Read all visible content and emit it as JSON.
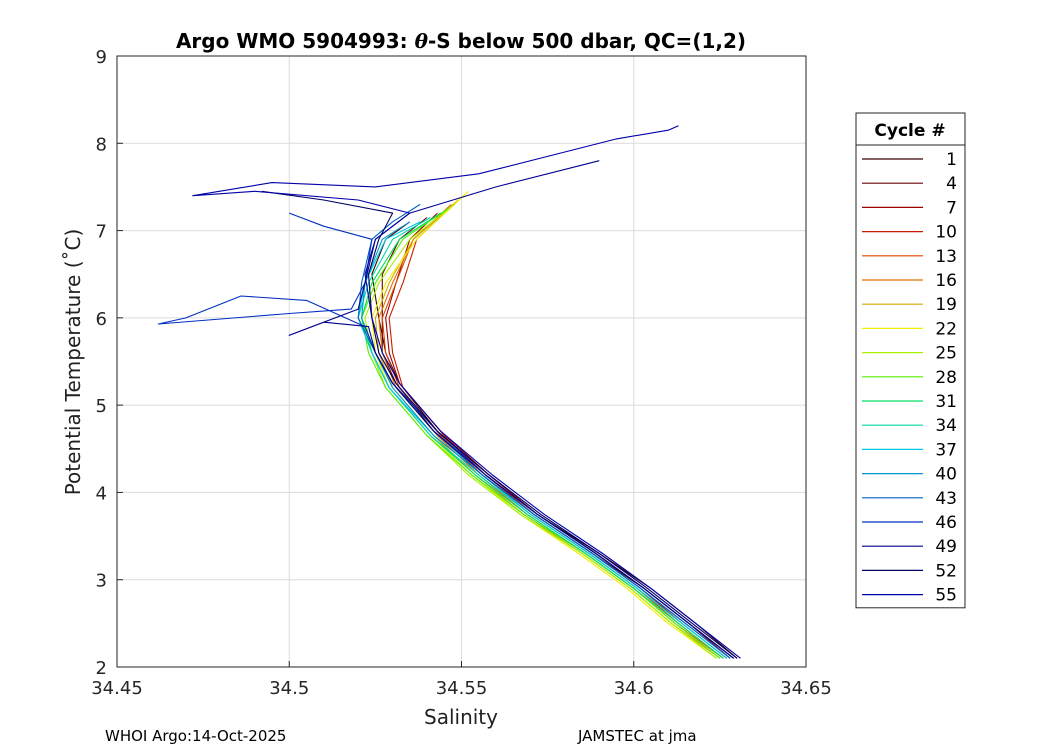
{
  "chart_data": {
    "type": "line",
    "title": "Argo WMO 5904993: θ-S below 500 dbar,  QC=(1,2)",
    "title_parts": {
      "prefix": "Argo WMO 5904993: ",
      "theta": "θ",
      "suffix": "-S below 500 dbar,  QC=(1,2)"
    },
    "xlabel": "Salinity",
    "ylabel": "Potential Temperature (˚C)",
    "xlim": [
      34.45,
      34.65
    ],
    "ylim": [
      2,
      9
    ],
    "x_ticks": [
      "34.45",
      "34.5",
      "34.55",
      "34.6",
      "34.65"
    ],
    "y_ticks": [
      "2",
      "3",
      "4",
      "5",
      "6",
      "7",
      "8",
      "9"
    ],
    "grid": true,
    "legend": {
      "title": "Cycle #",
      "placement": "outside-right"
    },
    "series": [
      {
        "name": "1",
        "color": "#3a0000",
        "points": [
          [
            34.63,
            2.1
          ],
          [
            34.618,
            2.5
          ],
          [
            34.605,
            2.9
          ],
          [
            34.59,
            3.3
          ],
          [
            34.572,
            3.75
          ],
          [
            34.558,
            4.2
          ],
          [
            34.543,
            4.7
          ],
          [
            34.532,
            5.25
          ],
          [
            34.528,
            5.6
          ],
          [
            34.526,
            6.0
          ],
          [
            34.524,
            6.5
          ],
          [
            34.528,
            6.9
          ],
          [
            34.535,
            7.1
          ]
        ]
      },
      {
        "name": "4",
        "color": "#6a0000",
        "points": [
          [
            34.629,
            2.1
          ],
          [
            34.616,
            2.5
          ],
          [
            34.603,
            2.9
          ],
          [
            34.588,
            3.3
          ],
          [
            34.571,
            3.75
          ],
          [
            34.557,
            4.2
          ],
          [
            34.542,
            4.7
          ],
          [
            34.531,
            5.25
          ],
          [
            34.527,
            5.6
          ],
          [
            34.527,
            6.0
          ],
          [
            34.527,
            6.5
          ],
          [
            34.532,
            6.9
          ],
          [
            34.54,
            7.15
          ]
        ]
      },
      {
        "name": "7",
        "color": "#9a0000",
        "points": [
          [
            34.628,
            2.1
          ],
          [
            34.616,
            2.5
          ],
          [
            34.603,
            2.9
          ],
          [
            34.589,
            3.3
          ],
          [
            34.572,
            3.75
          ],
          [
            34.558,
            4.2
          ],
          [
            34.544,
            4.7
          ],
          [
            34.532,
            5.25
          ],
          [
            34.529,
            5.6
          ],
          [
            34.528,
            6.0
          ],
          [
            34.531,
            6.4
          ],
          [
            34.535,
            6.9
          ],
          [
            34.543,
            7.2
          ]
        ]
      },
      {
        "name": "10",
        "color": "#cc1a00",
        "points": [
          [
            34.627,
            2.1
          ],
          [
            34.614,
            2.5
          ],
          [
            34.602,
            2.9
          ],
          [
            34.588,
            3.3
          ],
          [
            34.571,
            3.75
          ],
          [
            34.557,
            4.2
          ],
          [
            34.545,
            4.65
          ],
          [
            34.533,
            5.2
          ],
          [
            34.53,
            5.6
          ],
          [
            34.529,
            6.0
          ],
          [
            34.533,
            6.4
          ],
          [
            34.537,
            6.9
          ],
          [
            34.545,
            7.2
          ]
        ]
      },
      {
        "name": "13",
        "color": "#e04400",
        "points": [
          [
            34.626,
            2.1
          ],
          [
            34.613,
            2.5
          ],
          [
            34.601,
            2.9
          ],
          [
            34.587,
            3.3
          ],
          [
            34.57,
            3.75
          ],
          [
            34.556,
            4.2
          ],
          [
            34.544,
            4.65
          ],
          [
            34.532,
            5.2
          ],
          [
            34.528,
            5.6
          ],
          [
            34.527,
            6.0
          ],
          [
            34.531,
            6.4
          ],
          [
            34.536,
            6.9
          ],
          [
            34.546,
            7.25
          ]
        ]
      },
      {
        "name": "16",
        "color": "#e07000",
        "points": [
          [
            34.626,
            2.1
          ],
          [
            34.612,
            2.5
          ],
          [
            34.6,
            2.9
          ],
          [
            34.586,
            3.3
          ],
          [
            34.569,
            3.75
          ],
          [
            34.555,
            4.2
          ],
          [
            34.543,
            4.65
          ],
          [
            34.531,
            5.2
          ],
          [
            34.527,
            5.6
          ],
          [
            34.526,
            6.0
          ],
          [
            34.53,
            6.4
          ],
          [
            34.536,
            6.9
          ],
          [
            34.547,
            7.3
          ]
        ]
      },
      {
        "name": "19",
        "color": "#d4a800",
        "points": [
          [
            34.625,
            2.1
          ],
          [
            34.611,
            2.5
          ],
          [
            34.599,
            2.9
          ],
          [
            34.585,
            3.3
          ],
          [
            34.568,
            3.75
          ],
          [
            34.554,
            4.2
          ],
          [
            34.542,
            4.65
          ],
          [
            34.53,
            5.2
          ],
          [
            34.526,
            5.6
          ],
          [
            34.525,
            6.0
          ],
          [
            34.529,
            6.4
          ],
          [
            34.536,
            6.9
          ],
          [
            34.549,
            7.35
          ]
        ]
      },
      {
        "name": "22",
        "color": "#f0f000",
        "points": [
          [
            34.624,
            2.1
          ],
          [
            34.61,
            2.5
          ],
          [
            34.598,
            2.9
          ],
          [
            34.584,
            3.3
          ],
          [
            34.567,
            3.75
          ],
          [
            34.553,
            4.2
          ],
          [
            34.541,
            4.65
          ],
          [
            34.529,
            5.2
          ],
          [
            34.525,
            5.6
          ],
          [
            34.524,
            6.0
          ],
          [
            34.528,
            6.4
          ],
          [
            34.537,
            6.9
          ],
          [
            34.552,
            7.45
          ]
        ]
      },
      {
        "name": "25",
        "color": "#a8f000",
        "points": [
          [
            34.624,
            2.1
          ],
          [
            34.611,
            2.5
          ],
          [
            34.599,
            2.9
          ],
          [
            34.585,
            3.3
          ],
          [
            34.567,
            3.75
          ],
          [
            34.552,
            4.2
          ],
          [
            34.54,
            4.65
          ],
          [
            34.528,
            5.2
          ],
          [
            34.524,
            5.6
          ],
          [
            34.522,
            6.0
          ],
          [
            34.526,
            6.4
          ],
          [
            34.535,
            6.9
          ],
          [
            34.548,
            7.3
          ]
        ]
      },
      {
        "name": "28",
        "color": "#55f000",
        "points": [
          [
            34.625,
            2.1
          ],
          [
            34.612,
            2.5
          ],
          [
            34.6,
            2.9
          ],
          [
            34.586,
            3.3
          ],
          [
            34.568,
            3.75
          ],
          [
            34.553,
            4.2
          ],
          [
            34.54,
            4.65
          ],
          [
            34.528,
            5.2
          ],
          [
            34.523,
            5.6
          ],
          [
            34.521,
            6.0
          ],
          [
            34.525,
            6.4
          ],
          [
            34.533,
            6.9
          ],
          [
            34.546,
            7.25
          ]
        ]
      },
      {
        "name": "31",
        "color": "#00e060",
        "points": [
          [
            34.626,
            2.1
          ],
          [
            34.613,
            2.5
          ],
          [
            34.6,
            2.9
          ],
          [
            34.586,
            3.3
          ],
          [
            34.569,
            3.75
          ],
          [
            34.554,
            4.2
          ],
          [
            34.541,
            4.65
          ],
          [
            34.529,
            5.2
          ],
          [
            34.524,
            5.6
          ],
          [
            34.521,
            6.0
          ],
          [
            34.524,
            6.4
          ],
          [
            34.532,
            6.9
          ],
          [
            34.544,
            7.2
          ]
        ]
      },
      {
        "name": "34",
        "color": "#00d8a8",
        "points": [
          [
            34.627,
            2.1
          ],
          [
            34.614,
            2.5
          ],
          [
            34.601,
            2.9
          ],
          [
            34.587,
            3.3
          ],
          [
            34.57,
            3.75
          ],
          [
            34.555,
            4.2
          ],
          [
            34.541,
            4.65
          ],
          [
            34.529,
            5.2
          ],
          [
            34.524,
            5.6
          ],
          [
            34.52,
            6.0
          ],
          [
            34.523,
            6.4
          ],
          [
            34.53,
            6.9
          ],
          [
            34.541,
            7.15
          ]
        ]
      },
      {
        "name": "37",
        "color": "#00c8e0",
        "points": [
          [
            34.627,
            2.1
          ],
          [
            34.614,
            2.5
          ],
          [
            34.601,
            2.9
          ],
          [
            34.587,
            3.3
          ],
          [
            34.57,
            3.75
          ],
          [
            34.556,
            4.2
          ],
          [
            34.542,
            4.65
          ],
          [
            34.529,
            5.2
          ],
          [
            34.524,
            5.6
          ],
          [
            34.52,
            6.0
          ],
          [
            34.522,
            6.4
          ],
          [
            34.528,
            6.9
          ],
          [
            34.538,
            7.1
          ]
        ]
      },
      {
        "name": "40",
        "color": "#0098c8",
        "points": [
          [
            34.628,
            2.1
          ],
          [
            34.615,
            2.5
          ],
          [
            34.602,
            2.9
          ],
          [
            34.588,
            3.3
          ],
          [
            34.571,
            3.75
          ],
          [
            34.556,
            4.2
          ],
          [
            34.542,
            4.65
          ],
          [
            34.53,
            5.2
          ],
          [
            34.525,
            5.6
          ],
          [
            34.521,
            6.0
          ],
          [
            34.522,
            6.4
          ],
          [
            34.527,
            6.9
          ],
          [
            34.535,
            7.1
          ]
        ]
      },
      {
        "name": "43",
        "color": "#0060c0",
        "points": [
          [
            34.628,
            2.1
          ],
          [
            34.615,
            2.5
          ],
          [
            34.602,
            2.9
          ],
          [
            34.588,
            3.3
          ],
          [
            34.571,
            3.75
          ],
          [
            34.556,
            4.2
          ],
          [
            34.542,
            4.7
          ],
          [
            34.53,
            5.25
          ],
          [
            34.525,
            5.6
          ],
          [
            34.52,
            6.0
          ],
          [
            34.521,
            6.4
          ],
          [
            34.524,
            6.9
          ],
          [
            34.53,
            7.1
          ],
          [
            34.538,
            7.3
          ]
        ]
      },
      {
        "name": "46",
        "color": "#0030c0",
        "points": [
          [
            34.629,
            2.1
          ],
          [
            34.616,
            2.5
          ],
          [
            34.603,
            2.9
          ],
          [
            34.589,
            3.3
          ],
          [
            34.572,
            3.75
          ],
          [
            34.557,
            4.2
          ],
          [
            34.543,
            4.7
          ],
          [
            34.53,
            5.25
          ],
          [
            34.525,
            5.6
          ],
          [
            34.522,
            5.9
          ],
          [
            34.505,
            6.2
          ],
          [
            34.486,
            6.25
          ],
          [
            34.47,
            6.0
          ],
          [
            34.462,
            5.93
          ],
          [
            34.5,
            6.05
          ],
          [
            34.518,
            6.1
          ],
          [
            34.522,
            6.4
          ],
          [
            34.524,
            6.9
          ],
          [
            34.51,
            7.05
          ],
          [
            34.5,
            7.2
          ]
        ]
      },
      {
        "name": "49",
        "color": "#000090",
        "points": [
          [
            34.629,
            2.1
          ],
          [
            34.616,
            2.5
          ],
          [
            34.603,
            2.9
          ],
          [
            34.589,
            3.3
          ],
          [
            34.572,
            3.75
          ],
          [
            34.557,
            4.2
          ],
          [
            34.542,
            4.7
          ],
          [
            34.53,
            5.25
          ],
          [
            34.525,
            5.6
          ],
          [
            34.523,
            5.9
          ],
          [
            34.51,
            5.95
          ],
          [
            34.5,
            5.8
          ],
          [
            34.52,
            6.1
          ],
          [
            34.522,
            6.4
          ],
          [
            34.525,
            6.9
          ],
          [
            34.535,
            7.2
          ],
          [
            34.56,
            7.5
          ],
          [
            34.59,
            7.8
          ]
        ]
      },
      {
        "name": "52",
        "color": "#000060",
        "points": [
          [
            34.63,
            2.1
          ],
          [
            34.617,
            2.5
          ],
          [
            34.604,
            2.9
          ],
          [
            34.59,
            3.3
          ],
          [
            34.573,
            3.75
          ],
          [
            34.558,
            4.2
          ],
          [
            34.543,
            4.7
          ],
          [
            34.531,
            5.25
          ],
          [
            34.526,
            5.6
          ],
          [
            34.524,
            6.0
          ],
          [
            34.523,
            6.5
          ],
          [
            34.526,
            6.9
          ],
          [
            34.53,
            7.2
          ],
          [
            34.51,
            7.35
          ],
          [
            34.492,
            7.45
          ]
        ]
      },
      {
        "name": "55",
        "color": "#0000a8",
        "points": [
          [
            34.631,
            2.1
          ],
          [
            34.618,
            2.5
          ],
          [
            34.605,
            2.9
          ],
          [
            34.591,
            3.3
          ],
          [
            34.574,
            3.75
          ],
          [
            34.559,
            4.2
          ],
          [
            34.544,
            4.7
          ],
          [
            34.532,
            5.25
          ],
          [
            34.527,
            5.6
          ],
          [
            34.524,
            6.0
          ],
          [
            34.522,
            6.5
          ],
          [
            34.525,
            6.9
          ],
          [
            34.535,
            7.2
          ],
          [
            34.52,
            7.35
          ],
          [
            34.49,
            7.45
          ],
          [
            34.472,
            7.4
          ],
          [
            34.495,
            7.55
          ],
          [
            34.525,
            7.5
          ],
          [
            34.555,
            7.65
          ],
          [
            34.575,
            7.85
          ],
          [
            34.595,
            8.05
          ],
          [
            34.61,
            8.15
          ],
          [
            34.613,
            8.2
          ]
        ]
      }
    ]
  },
  "footer": {
    "left": "WHOI Argo:14-Oct-2025",
    "right": "JAMSTEC at jma"
  }
}
